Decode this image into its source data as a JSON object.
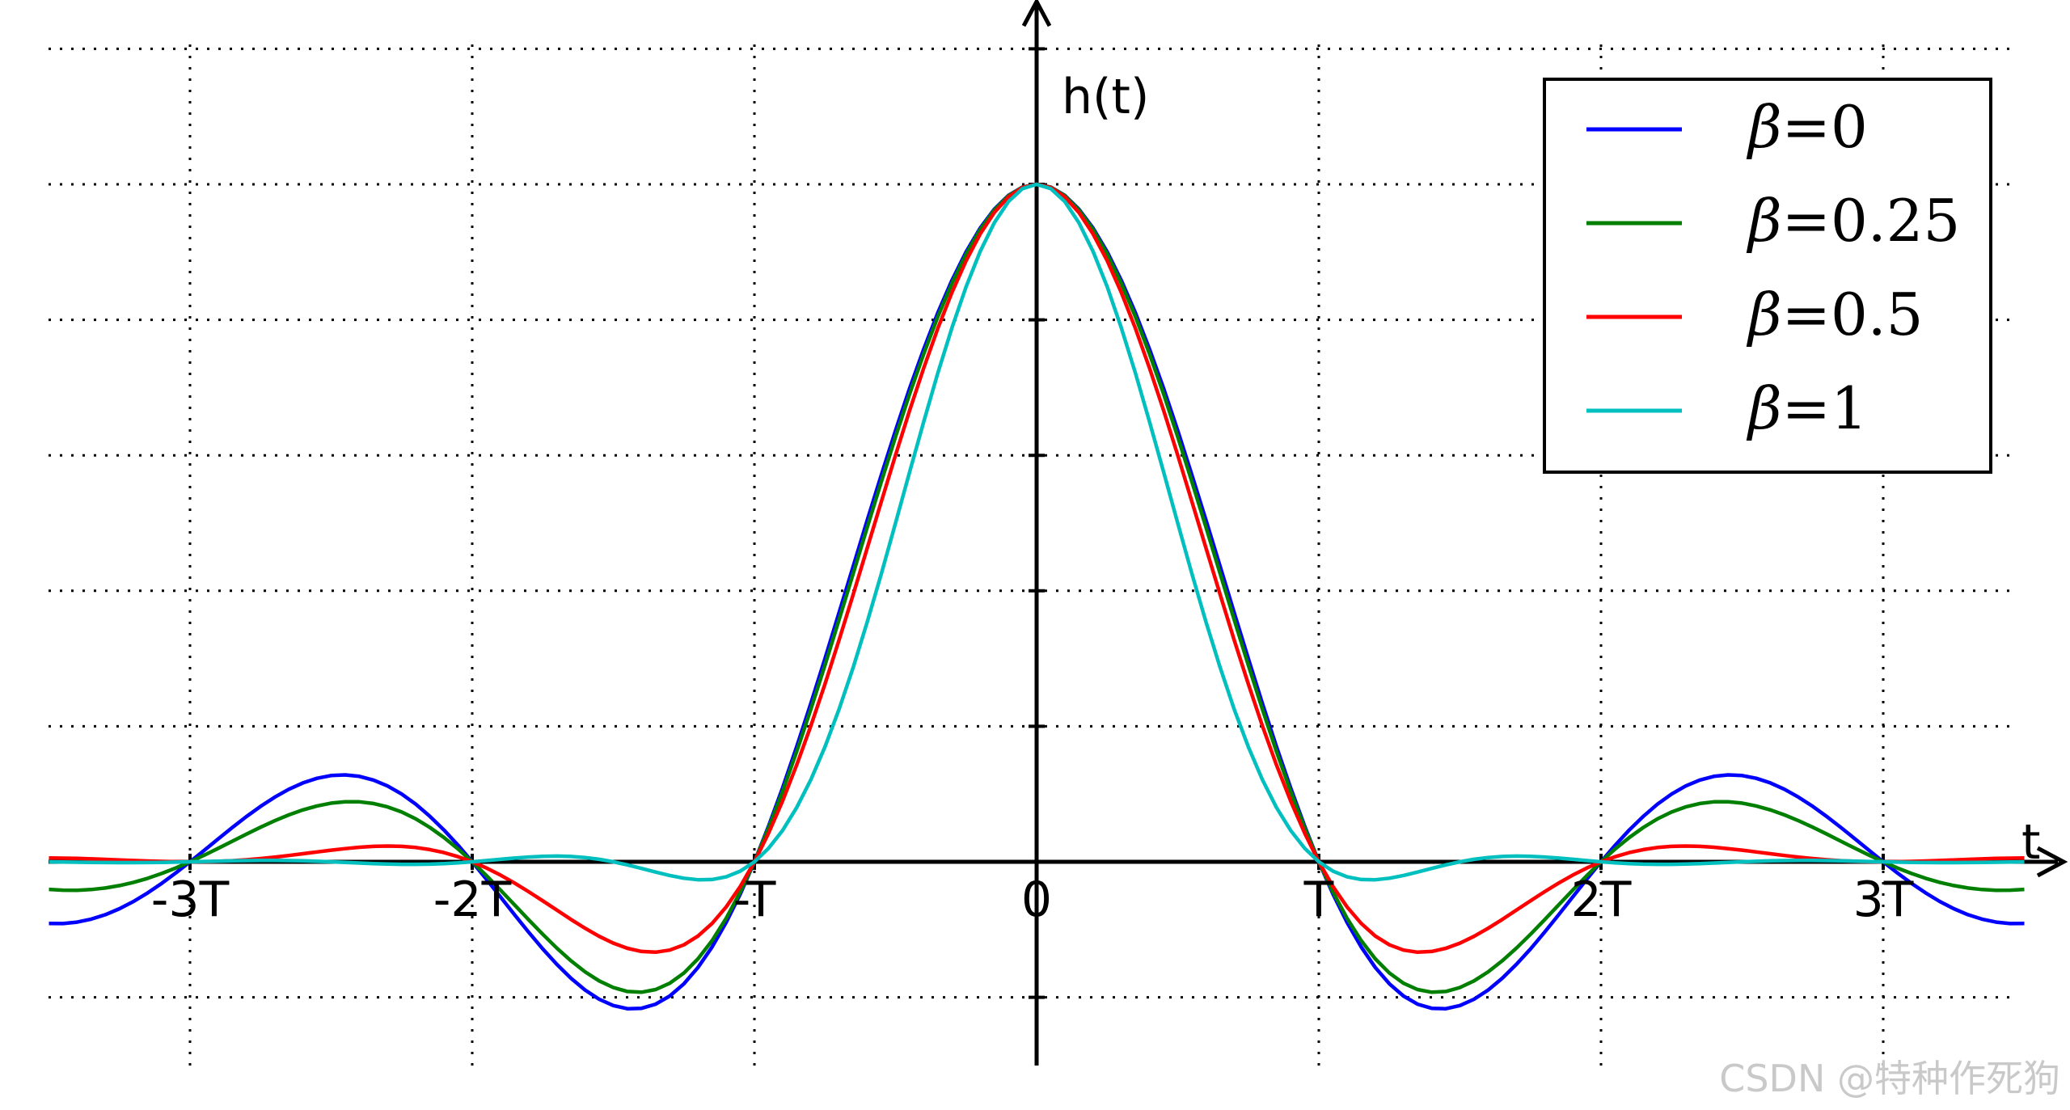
{
  "chart_data": {
    "type": "line",
    "title": "",
    "xlabel": "t",
    "ylabel": "h(t)",
    "xlim": [
      -3.5,
      3.5
    ],
    "ylim": [
      -0.3,
      1.25
    ],
    "x_ticks": [
      {
        "value": -3,
        "label": "-3T"
      },
      {
        "value": -2,
        "label": "-2T"
      },
      {
        "value": -1,
        "label": "-T"
      },
      {
        "value": 0,
        "label": "0"
      },
      {
        "value": 1,
        "label": "T"
      },
      {
        "value": 2,
        "label": "2T"
      },
      {
        "value": 3,
        "label": "3T"
      }
    ],
    "y_ticks": [
      -0.2,
      0,
      0.2,
      0.4,
      0.6,
      0.8,
      1.0,
      1.2
    ],
    "grid": true,
    "legend_position": "top-right",
    "series": [
      {
        "name": "β=0",
        "name_prefix": "β",
        "name_value": "=0",
        "beta": 0,
        "color": "#0000ff"
      },
      {
        "name": "β=0.25",
        "name_prefix": "β",
        "name_value": "=0.25",
        "beta": 0.25,
        "color": "#007f00"
      },
      {
        "name": "β=0.5",
        "name_prefix": "β",
        "name_value": "=0.5",
        "beta": 0.5,
        "color": "#ff0000"
      },
      {
        "name": "β=1",
        "name_prefix": "β",
        "name_value": "=1",
        "beta": 1,
        "color": "#00bfbf"
      }
    ]
  },
  "watermark": "CSDN @特种作死狗"
}
